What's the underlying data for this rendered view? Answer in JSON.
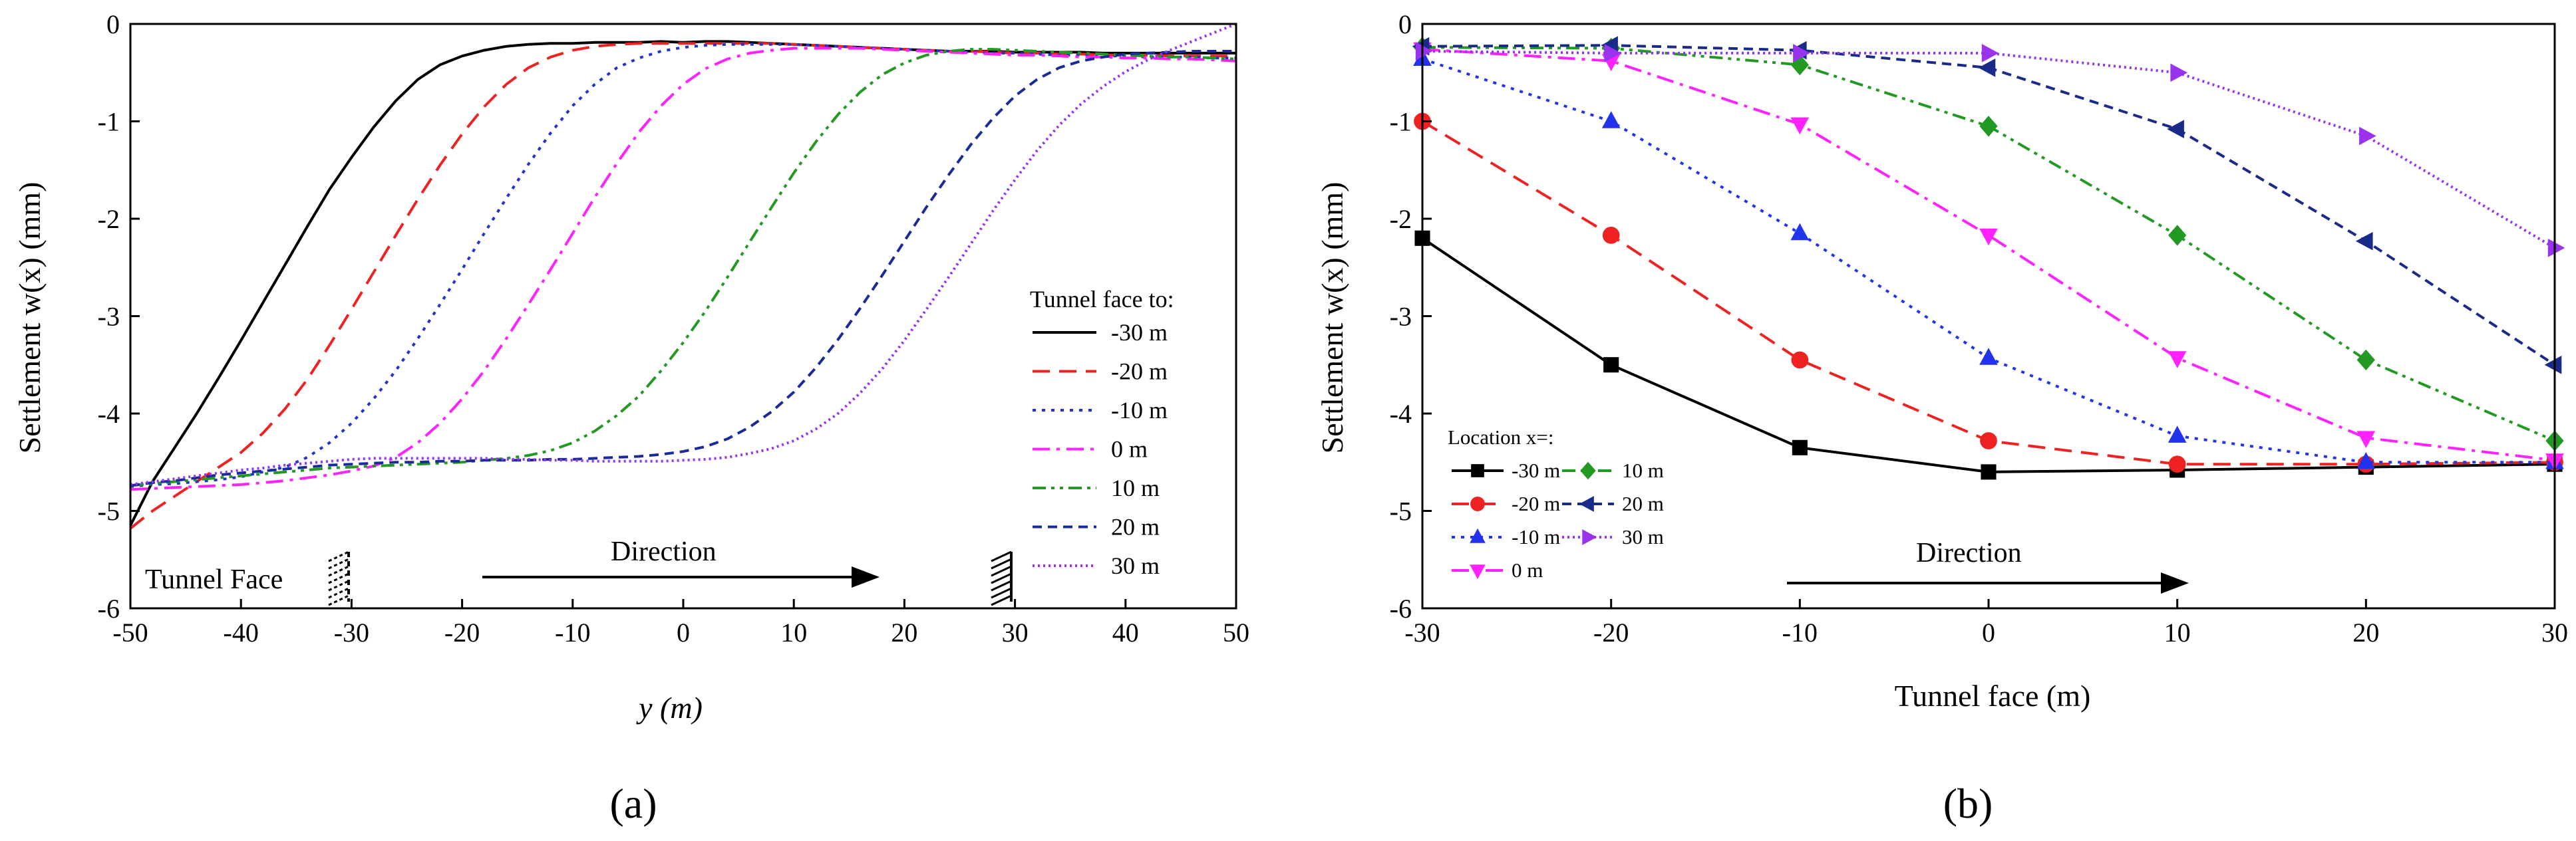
{
  "chart_data": [
    {
      "type": "line",
      "panel_label": "(a)",
      "xlabel": "y (m)",
      "ylabel": "Settlement w(x) (mm)",
      "xlim": [
        -50,
        50
      ],
      "ylim": [
        -6,
        0
      ],
      "xticks": [
        -50,
        -40,
        -30,
        -20,
        -10,
        0,
        10,
        20,
        30,
        40,
        50
      ],
      "yticks": [
        0,
        -1,
        -2,
        -3,
        -4,
        -5,
        -6
      ],
      "legend_title": "Tunnel face to:",
      "legend_position": "right",
      "annotations": {
        "face_label": "Tunnel Face",
        "direction_label": "Direction"
      },
      "x": [
        -50,
        -48,
        -46,
        -44,
        -42,
        -40,
        -38,
        -36,
        -34,
        -32,
        -30,
        -28,
        -26,
        -24,
        -22,
        -20,
        -18,
        -16,
        -14,
        -12,
        -10,
        -8,
        -6,
        -4,
        -2,
        0,
        2,
        4,
        6,
        8,
        10,
        12,
        14,
        16,
        18,
        20,
        22,
        24,
        26,
        28,
        30,
        32,
        34,
        36,
        38,
        40,
        42,
        44,
        46,
        48,
        50
      ],
      "series": [
        {
          "name": "-30 m",
          "color": "#000000",
          "dash": "solid",
          "values": [
            -5.15,
            -4.7,
            -4.35,
            -4.0,
            -3.63,
            -3.25,
            -2.86,
            -2.47,
            -2.08,
            -1.7,
            -1.37,
            -1.06,
            -0.79,
            -0.57,
            -0.42,
            -0.33,
            -0.27,
            -0.23,
            -0.21,
            -0.2,
            -0.2,
            -0.19,
            -0.19,
            -0.19,
            -0.18,
            -0.19,
            -0.18,
            -0.18,
            -0.19,
            -0.2,
            -0.21,
            -0.22,
            -0.23,
            -0.24,
            -0.25,
            -0.26,
            -0.27,
            -0.28,
            -0.28,
            -0.28,
            -0.29,
            -0.29,
            -0.29,
            -0.29,
            -0.3,
            -0.3,
            -0.3,
            -0.3,
            -0.3,
            -0.3,
            -0.3
          ]
        },
        {
          "name": "-20 m",
          "color": "#ee2222",
          "dash": "dashed",
          "values": [
            -5.18,
            -5.0,
            -4.85,
            -4.7,
            -4.55,
            -4.4,
            -4.2,
            -3.95,
            -3.65,
            -3.3,
            -2.93,
            -2.55,
            -2.17,
            -1.8,
            -1.45,
            -1.13,
            -0.85,
            -0.62,
            -0.45,
            -0.34,
            -0.27,
            -0.23,
            -0.21,
            -0.2,
            -0.2,
            -0.2,
            -0.2,
            -0.2,
            -0.2,
            -0.2,
            -0.21,
            -0.22,
            -0.23,
            -0.24,
            -0.25,
            -0.26,
            -0.27,
            -0.28,
            -0.28,
            -0.29,
            -0.3,
            -0.3,
            -0.31,
            -0.31,
            -0.32,
            -0.32,
            -0.32,
            -0.33,
            -0.33,
            -0.33,
            -0.33
          ]
        },
        {
          "name": "-10 m",
          "color": "#2233cc",
          "dash": "dotted",
          "values": [
            -4.75,
            -4.73,
            -4.72,
            -4.7,
            -4.68,
            -4.65,
            -4.6,
            -4.55,
            -4.45,
            -4.3,
            -4.1,
            -3.85,
            -3.56,
            -3.23,
            -2.88,
            -2.52,
            -2.15,
            -1.79,
            -1.44,
            -1.12,
            -0.84,
            -0.62,
            -0.45,
            -0.35,
            -0.28,
            -0.24,
            -0.22,
            -0.21,
            -0.21,
            -0.21,
            -0.21,
            -0.22,
            -0.23,
            -0.24,
            -0.25,
            -0.26,
            -0.27,
            -0.28,
            -0.29,
            -0.3,
            -0.3,
            -0.31,
            -0.32,
            -0.32,
            -0.33,
            -0.33,
            -0.34,
            -0.34,
            -0.34,
            -0.35,
            -0.35
          ]
        },
        {
          "name": "0 m",
          "color": "#ff22ff",
          "dash": "dashdot",
          "values": [
            -4.78,
            -4.77,
            -4.76,
            -4.75,
            -4.74,
            -4.73,
            -4.71,
            -4.69,
            -4.66,
            -4.63,
            -4.59,
            -4.54,
            -4.45,
            -4.3,
            -4.1,
            -3.85,
            -3.56,
            -3.23,
            -2.88,
            -2.52,
            -2.15,
            -1.78,
            -1.43,
            -1.11,
            -0.84,
            -0.62,
            -0.46,
            -0.36,
            -0.3,
            -0.27,
            -0.25,
            -0.25,
            -0.25,
            -0.25,
            -0.26,
            -0.27,
            -0.28,
            -0.29,
            -0.3,
            -0.31,
            -0.32,
            -0.32,
            -0.33,
            -0.34,
            -0.34,
            -0.35,
            -0.35,
            -0.36,
            -0.36,
            -0.37,
            -0.38
          ]
        },
        {
          "name": "10 m",
          "color": "#229922",
          "dash": "dashdotdot",
          "values": [
            -4.74,
            -4.72,
            -4.7,
            -4.68,
            -4.66,
            -4.64,
            -4.62,
            -4.6,
            -4.58,
            -4.56,
            -4.55,
            -4.54,
            -4.53,
            -4.52,
            -4.51,
            -4.5,
            -4.48,
            -4.46,
            -4.43,
            -4.38,
            -4.3,
            -4.18,
            -4.02,
            -3.82,
            -3.56,
            -3.27,
            -2.95,
            -2.6,
            -2.24,
            -1.88,
            -1.53,
            -1.21,
            -0.93,
            -0.7,
            -0.52,
            -0.4,
            -0.32,
            -0.28,
            -0.26,
            -0.26,
            -0.27,
            -0.28,
            -0.29,
            -0.3,
            -0.31,
            -0.32,
            -0.33,
            -0.34,
            -0.34,
            -0.35,
            -0.36
          ]
        },
        {
          "name": "20 m",
          "color": "#1a2a99",
          "dash": "shortdash",
          "values": [
            -4.74,
            -4.71,
            -4.69,
            -4.66,
            -4.63,
            -4.61,
            -4.59,
            -4.57,
            -4.55,
            -4.53,
            -4.52,
            -4.51,
            -4.5,
            -4.5,
            -4.49,
            -4.49,
            -4.48,
            -4.48,
            -4.48,
            -4.47,
            -4.47,
            -4.46,
            -4.45,
            -4.44,
            -4.42,
            -4.39,
            -4.34,
            -4.26,
            -4.14,
            -3.98,
            -3.78,
            -3.53,
            -3.24,
            -2.92,
            -2.58,
            -2.23,
            -1.88,
            -1.55,
            -1.24,
            -0.97,
            -0.74,
            -0.57,
            -0.45,
            -0.38,
            -0.34,
            -0.31,
            -0.3,
            -0.29,
            -0.28,
            -0.28,
            -0.28
          ]
        },
        {
          "name": "30 m",
          "color": "#9933ee",
          "dash": "finedot",
          "values": [
            -4.73,
            -4.7,
            -4.67,
            -4.64,
            -4.61,
            -4.58,
            -4.56,
            -4.53,
            -4.51,
            -4.49,
            -4.47,
            -4.46,
            -4.46,
            -4.46,
            -4.46,
            -4.46,
            -4.46,
            -4.47,
            -4.47,
            -4.48,
            -4.48,
            -4.49,
            -4.49,
            -4.49,
            -4.49,
            -4.48,
            -4.47,
            -4.45,
            -4.41,
            -4.36,
            -4.28,
            -4.16,
            -4.0,
            -3.79,
            -3.54,
            -3.25,
            -2.93,
            -2.6,
            -2.26,
            -1.92,
            -1.6,
            -1.3,
            -1.04,
            -0.82,
            -0.64,
            -0.49,
            -0.37,
            -0.27,
            -0.18,
            -0.09,
            0.0
          ]
        }
      ]
    },
    {
      "type": "line",
      "panel_label": "(b)",
      "xlabel": "Tunnel face (m)",
      "ylabel": "Settlement w(x) (mm)",
      "xlim": [
        -30,
        30
      ],
      "ylim": [
        -6,
        0
      ],
      "xticks": [
        -30,
        -20,
        -10,
        0,
        10,
        20,
        30
      ],
      "yticks": [
        0,
        -1,
        -2,
        -3,
        -4,
        -5,
        -6
      ],
      "legend_title": "Location x=:",
      "legend_position": "bottom-left",
      "annotations": {
        "direction_label": "Direction"
      },
      "x": [
        -30,
        -20,
        -10,
        0,
        10,
        20,
        30
      ],
      "series": [
        {
          "name": "-30 m",
          "color": "#000000",
          "dash": "solid",
          "marker": "square",
          "values": [
            -2.2,
            -3.5,
            -4.35,
            -4.6,
            -4.58,
            -4.55,
            -4.52
          ]
        },
        {
          "name": "-20 m",
          "color": "#ee2222",
          "dash": "dashed",
          "marker": "circle",
          "values": [
            -1.0,
            -2.17,
            -3.45,
            -4.28,
            -4.52,
            -4.52,
            -4.5
          ]
        },
        {
          "name": "-10 m",
          "color": "#2233ee",
          "dash": "dotted",
          "marker": "triangle-up",
          "values": [
            -0.36,
            -1.0,
            -2.15,
            -3.43,
            -4.23,
            -4.5,
            -4.5
          ]
        },
        {
          "name": "0 m",
          "color": "#ff22ff",
          "dash": "dashdot",
          "marker": "triangle-down",
          "values": [
            -0.26,
            -0.38,
            -1.03,
            -2.17,
            -3.43,
            -4.25,
            -4.48
          ]
        },
        {
          "name": "10 m",
          "color": "#229922",
          "dash": "dashdotdot",
          "marker": "diamond",
          "values": [
            -0.24,
            -0.25,
            -0.42,
            -1.05,
            -2.17,
            -3.45,
            -4.28
          ]
        },
        {
          "name": "20 m",
          "color": "#1a2a88",
          "dash": "shortdash",
          "marker": "triangle-left",
          "values": [
            -0.23,
            -0.22,
            -0.27,
            -0.45,
            -1.08,
            -2.23,
            -3.5
          ]
        },
        {
          "name": "30 m",
          "color": "#9933ee",
          "dash": "finedot",
          "marker": "triangle-right",
          "values": [
            -0.28,
            -0.3,
            -0.3,
            -0.3,
            -0.5,
            -1.15,
            -2.3
          ]
        }
      ]
    }
  ]
}
